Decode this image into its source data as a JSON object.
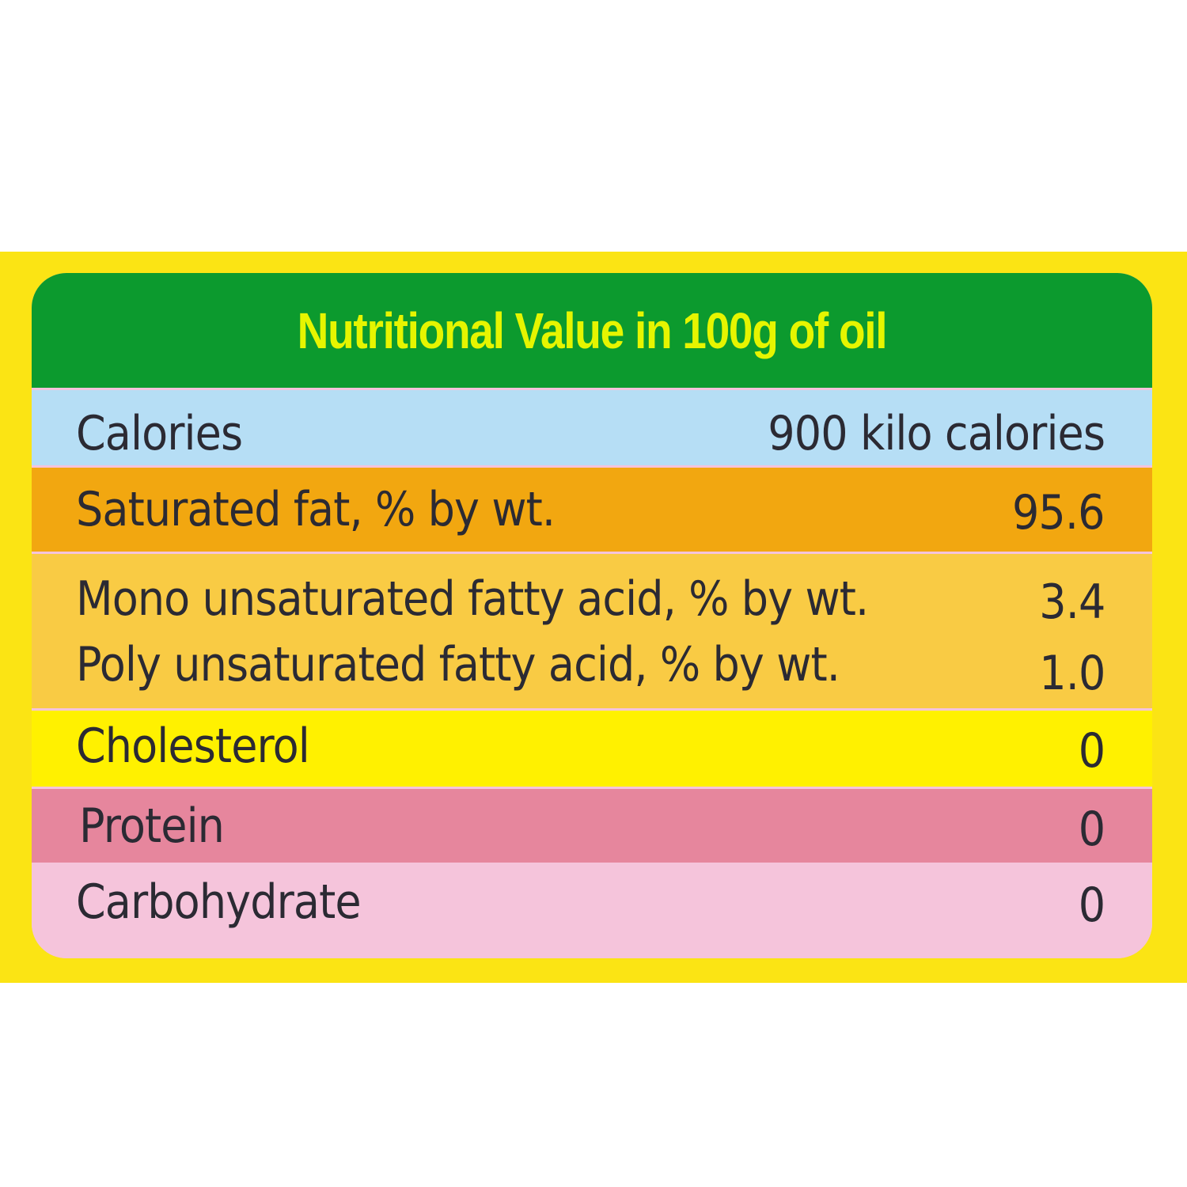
{
  "title": "Nutritional Value in 100g of oil",
  "rows": {
    "calories": {
      "label": "Calories",
      "value": "900 kilo calories"
    },
    "saturated_fat": {
      "label": "Saturated fat, % by wt.",
      "value": "95.6"
    },
    "mono": {
      "label": "Mono unsaturated fatty acid, % by wt.",
      "value": "3.4"
    },
    "poly": {
      "label": "Poly unsaturated fatty acid, % by wt.",
      "value": "1.0"
    },
    "cholesterol": {
      "label": "Cholesterol",
      "value": "0"
    },
    "protein": {
      "label": "Protein",
      "value": "0"
    },
    "carbohydrate": {
      "label": "Carbohydrate",
      "value": "0"
    }
  },
  "colors": {
    "frame": "#fbe414",
    "header": "#0c9a2e",
    "title_text": "#e6f500",
    "calories_row": "#b6def5",
    "saturated_fat_row": "#f2a710",
    "fatty_acid_row": "#f9cb44",
    "cholesterol_row": "#fff100",
    "protein_row": "#e6869d",
    "carbohydrate_row": "#f5c4db"
  }
}
